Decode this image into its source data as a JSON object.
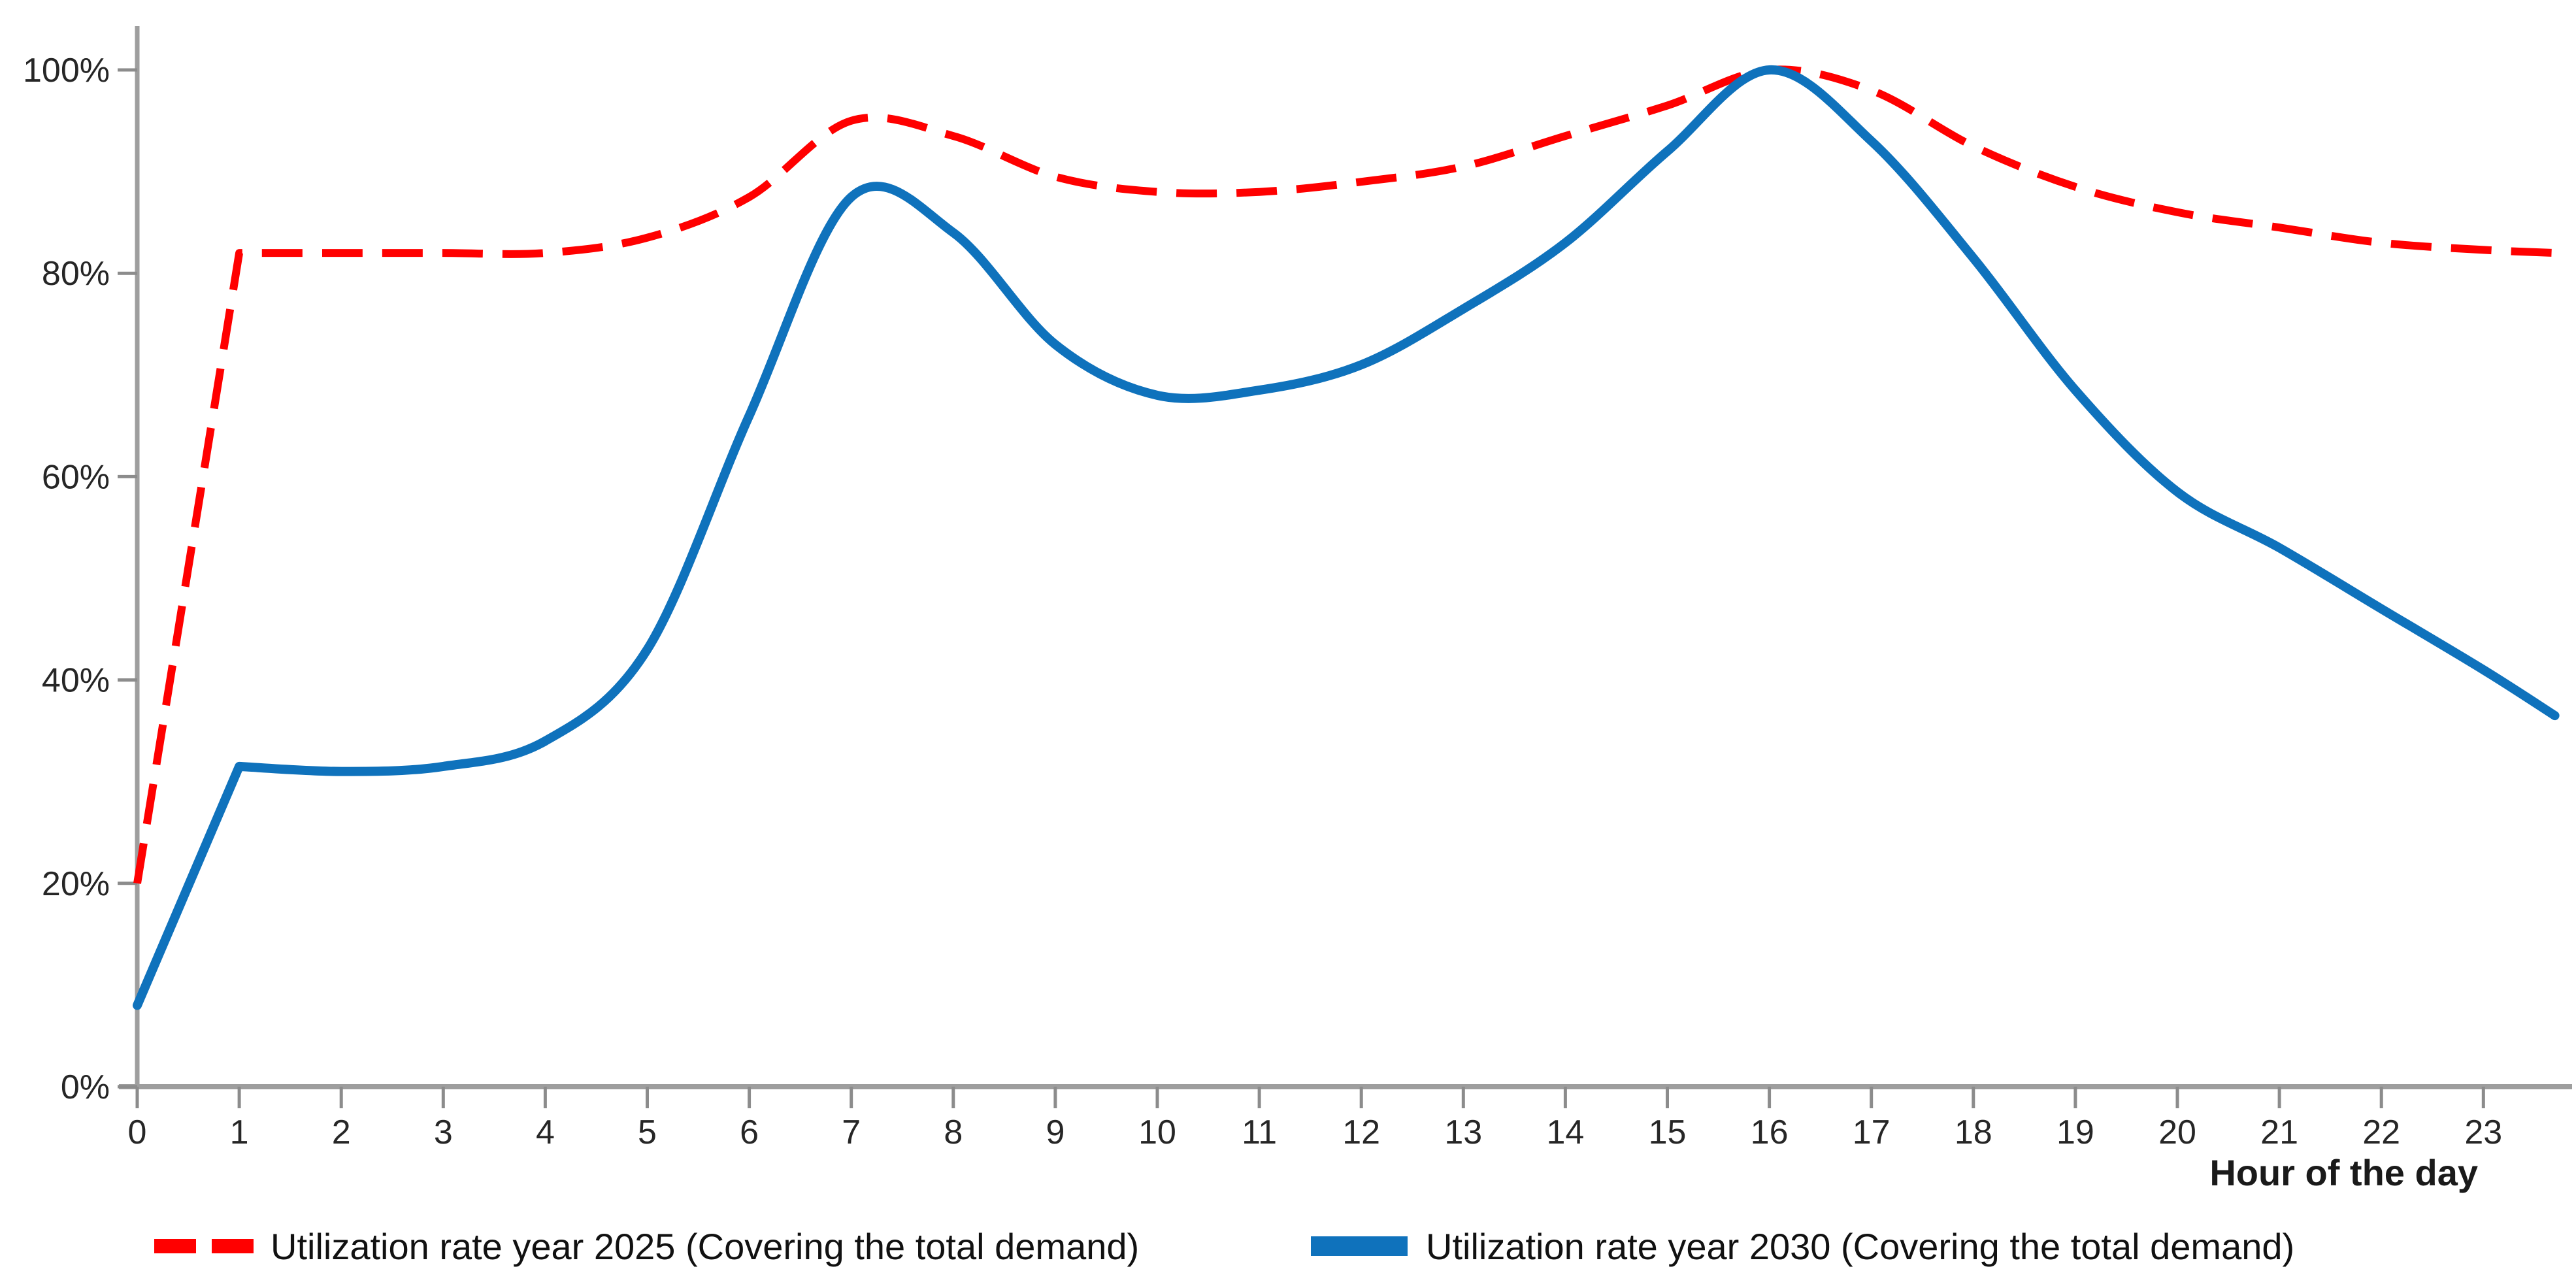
{
  "chart_data": {
    "type": "line",
    "title": "",
    "xlabel": "Hour of the day",
    "ylabel": "",
    "grid": "off",
    "legend_position": "bottom",
    "xlim": [
      0,
      23.7
    ],
    "ylim": [
      0,
      100
    ],
    "x": [
      0,
      1,
      2,
      3,
      4,
      5,
      6,
      7,
      8,
      9,
      10,
      11,
      12,
      13,
      14,
      15,
      16,
      17,
      18,
      19,
      20,
      21,
      22,
      23,
      23.7
    ],
    "x_tick_labels": [
      "0",
      "1",
      "2",
      "3",
      "4",
      "5",
      "6",
      "7",
      "8",
      "9",
      "10",
      "11",
      "12",
      "13",
      "14",
      "15",
      "16",
      "17",
      "18",
      "19",
      "20",
      "21",
      "22",
      "23"
    ],
    "y_tick_labels": [
      "0%",
      "20%",
      "40%",
      "60%",
      "80%",
      "100%"
    ],
    "y_tick_values": [
      0,
      20,
      40,
      60,
      80,
      100
    ],
    "series": [
      {
        "name": "Utilization rate year 2025 (Covering the total demand)",
        "color": "#ff0000",
        "style": "dashed",
        "values": [
          20,
          82,
          82,
          82,
          82,
          83.5,
          87.5,
          95,
          93.5,
          89.5,
          88,
          88,
          89,
          90.5,
          93.5,
          96.5,
          100,
          98,
          92.5,
          88.5,
          86,
          84.5,
          83,
          82.3,
          82
        ]
      },
      {
        "name": "Utilization rate year 2030 (Covering the total demand)",
        "color": "#0f72bc",
        "style": "solid",
        "values": [
          8,
          31.5,
          31,
          31.5,
          34,
          43,
          66,
          87.5,
          84,
          73,
          68,
          68.5,
          71,
          76.5,
          83,
          92,
          100,
          93,
          81.5,
          68.5,
          58.5,
          53,
          47,
          41,
          36.5
        ]
      }
    ]
  },
  "axis_colors": {
    "axis_line": "#9e9e9e",
    "tick_mark": "#8c8c8c",
    "tick_label": "#262626"
  }
}
